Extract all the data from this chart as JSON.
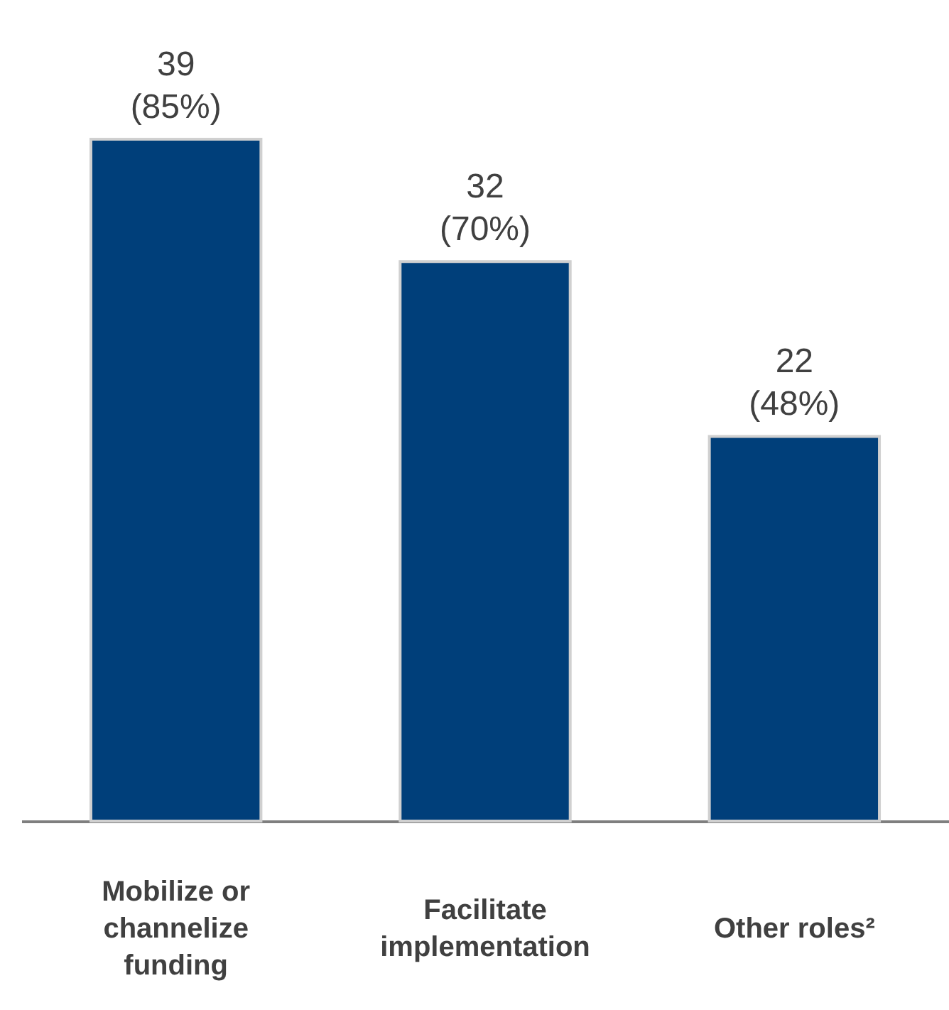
{
  "chart_data": {
    "type": "bar",
    "categories": [
      "Mobilize or channelize funding",
      "Facilitate implementation",
      "Other roles²"
    ],
    "values": [
      39,
      32,
      22
    ],
    "value_labels": [
      "39\n(85%)",
      "32\n(70%)",
      "22\n(48%)"
    ],
    "color": "#003f7a"
  }
}
